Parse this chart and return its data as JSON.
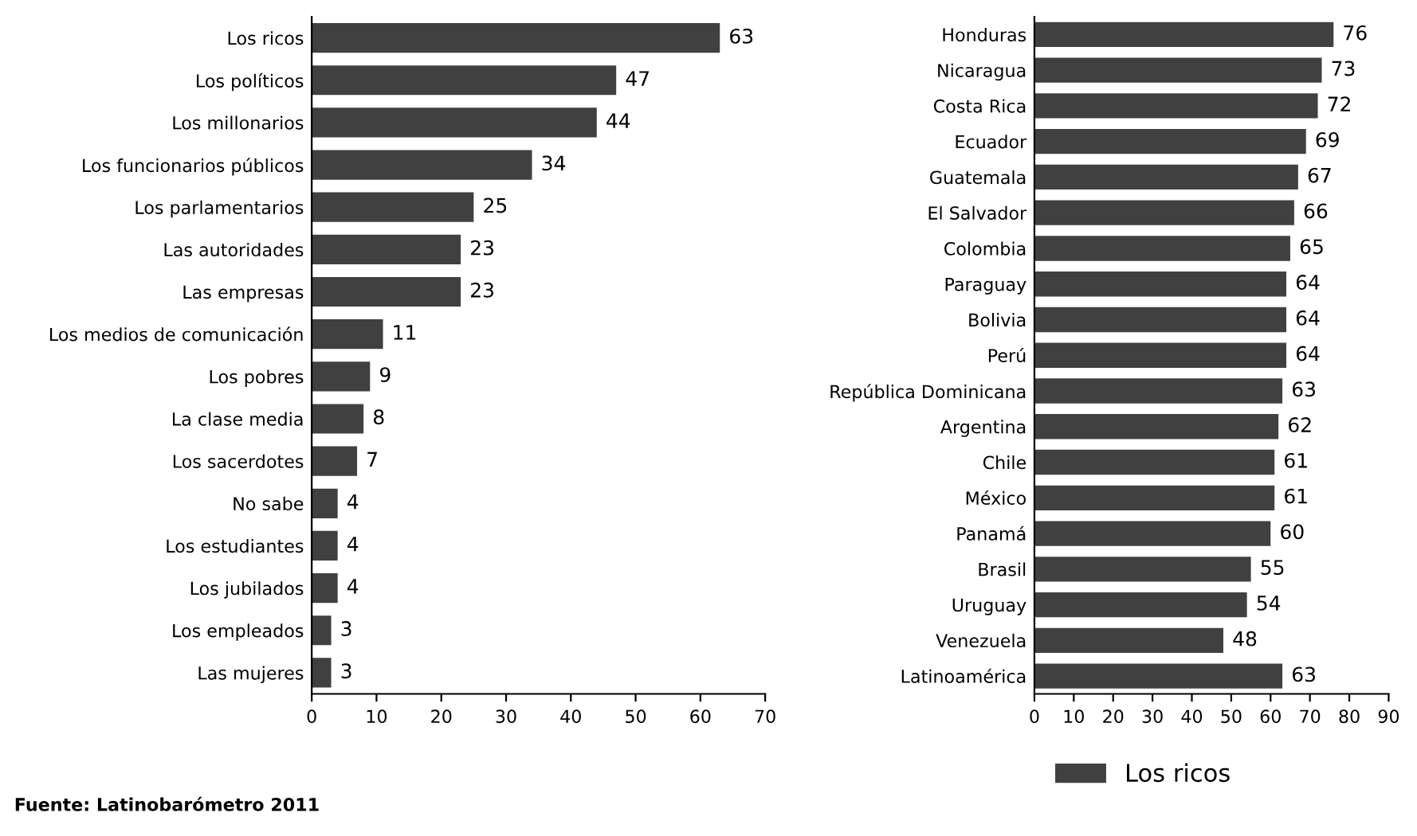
{
  "chart_data": [
    {
      "type": "bar",
      "orientation": "horizontal",
      "categories": [
        "Los ricos",
        "Los políticos",
        "Los millonarios",
        "Los funcionarios públicos",
        "Los parlamentarios",
        "Las autoridades",
        "Las empresas",
        "Los medios de comunicación",
        "Los pobres",
        "La clase media",
        "Los sacerdotes",
        "No sabe",
        "Los estudiantes",
        "Los jubilados",
        "Los empleados",
        "Las mujeres"
      ],
      "series": [
        {
          "color": "#404040",
          "values": [
            63,
            47,
            44,
            34,
            25,
            23,
            23,
            11,
            9,
            8,
            7,
            4,
            4,
            4,
            3,
            3
          ]
        }
      ],
      "xlim": [
        0,
        70
      ],
      "xticks": [
        0,
        10,
        20,
        30,
        40,
        50,
        60,
        70
      ],
      "data_labels": true,
      "grid": false,
      "legend": false,
      "annotations": [
        "Fuente: Latinobarómetro 2011"
      ]
    },
    {
      "type": "bar",
      "orientation": "horizontal",
      "categories": [
        "Honduras",
        "Nicaragua",
        "Costa Rica",
        "Ecuador",
        "Guatemala",
        "El Salvador",
        "Colombia",
        "Paraguay",
        "Bolivia",
        "Perú",
        "República Dominicana",
        "Argentina",
        "Chile",
        "México",
        "Panamá",
        "Brasil",
        "Uruguay",
        "Venezuela",
        "Latinoamérica"
      ],
      "series": [
        {
          "name": "Los ricos",
          "color": "#404040",
          "values": [
            76,
            73,
            72,
            69,
            67,
            66,
            65,
            64,
            64,
            64,
            63,
            62,
            61,
            61,
            60,
            55,
            54,
            48,
            63
          ]
        }
      ],
      "xlim": [
        0,
        90
      ],
      "xticks": [
        0,
        10,
        20,
        30,
        40,
        50,
        60,
        70,
        80,
        90
      ],
      "data_labels": true,
      "grid": false,
      "legend": "bottom"
    }
  ]
}
